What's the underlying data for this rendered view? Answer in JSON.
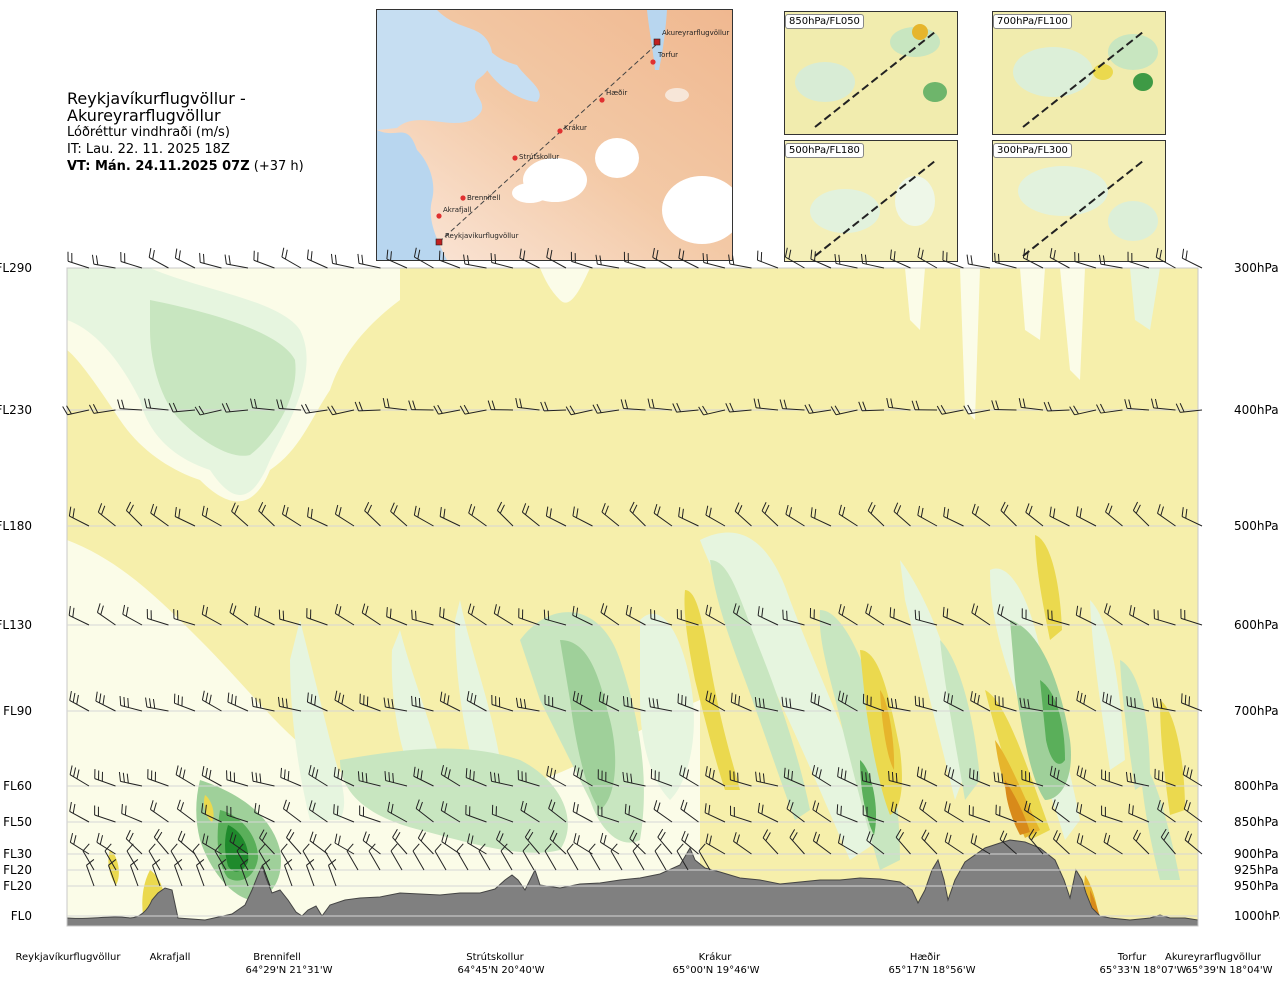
{
  "header": {
    "route": "Reykjavíkurflugvöllur - Akureyrarflugvöllur",
    "variable": "Lóðréttur vindhraði (m/s)",
    "issue_time": "IT: Lau. 22. 11. 2025 18Z",
    "valid_time": "VT: Mán. 24.11.2025 07Z",
    "lead_time": "(+37 h)"
  },
  "route_map": {
    "places": [
      "Reykjavíkurflugvöllur",
      "Akrafjall",
      "Brennifell",
      "Strútskollur",
      "Krákur",
      "Hæðir",
      "Torfur",
      "Akureyrarflugvöllur"
    ]
  },
  "insets": [
    {
      "label": "850hPa/FL050"
    },
    {
      "label": "700hPa/FL100"
    },
    {
      "label": "500hPa/FL180"
    },
    {
      "label": "300hPa/FL300"
    }
  ],
  "chart_data": {
    "type": "heatmap",
    "title": "Lóðréttur vindhraði (m/s)",
    "levels": [
      {
        "fl": "FL290",
        "hpa": "300hPa"
      },
      {
        "fl": "FL230",
        "hpa": "400hPa"
      },
      {
        "fl": "FL180",
        "hpa": "500hPa"
      },
      {
        "fl": "FL130",
        "hpa": "600hPa"
      },
      {
        "fl": "FL90",
        "hpa": "700hPa"
      },
      {
        "fl": "FL60",
        "hpa": "800hPa"
      },
      {
        "fl": "FL50",
        "hpa": "850hPa"
      },
      {
        "fl": "FL30",
        "hpa": "900hPa"
      },
      {
        "fl": "FL20",
        "hpa": "925hPa"
      },
      {
        "fl": "FL20",
        "hpa": "950hPa"
      },
      {
        "fl": "FL0",
        "hpa": "1000hPa"
      }
    ],
    "waypoints": [
      {
        "name": "Reykjavíkurflugvöllur",
        "coord": ""
      },
      {
        "name": "Akrafjall",
        "coord": ""
      },
      {
        "name": "Brennifell",
        "coord": "64°29'N 21°31'W"
      },
      {
        "name": "Strútskollur",
        "coord": "64°45'N 20°40'W"
      },
      {
        "name": "Krákur",
        "coord": "65°00'N 19°46'W"
      },
      {
        "name": "Hæðir",
        "coord": "65°17'N 18°56'W"
      },
      {
        "name": "Torfur",
        "coord": "65°33'N 18°07'W"
      },
      {
        "name": "Akureyrarflugvöllur",
        "coord": "65°39'N 18°04'W"
      }
    ],
    "colors": {
      "background": "#f6efab",
      "weak_up": "#e6f5df",
      "up_1": "#c8e6c0",
      "up_2": "#9fd09a",
      "up_3": "#5aaf5a",
      "up_4": "#1f8a2c",
      "down_1": "#ebd94e",
      "down_2": "#e6b52c",
      "down_3": "#d88a1a",
      "terrain": "#808080"
    }
  }
}
